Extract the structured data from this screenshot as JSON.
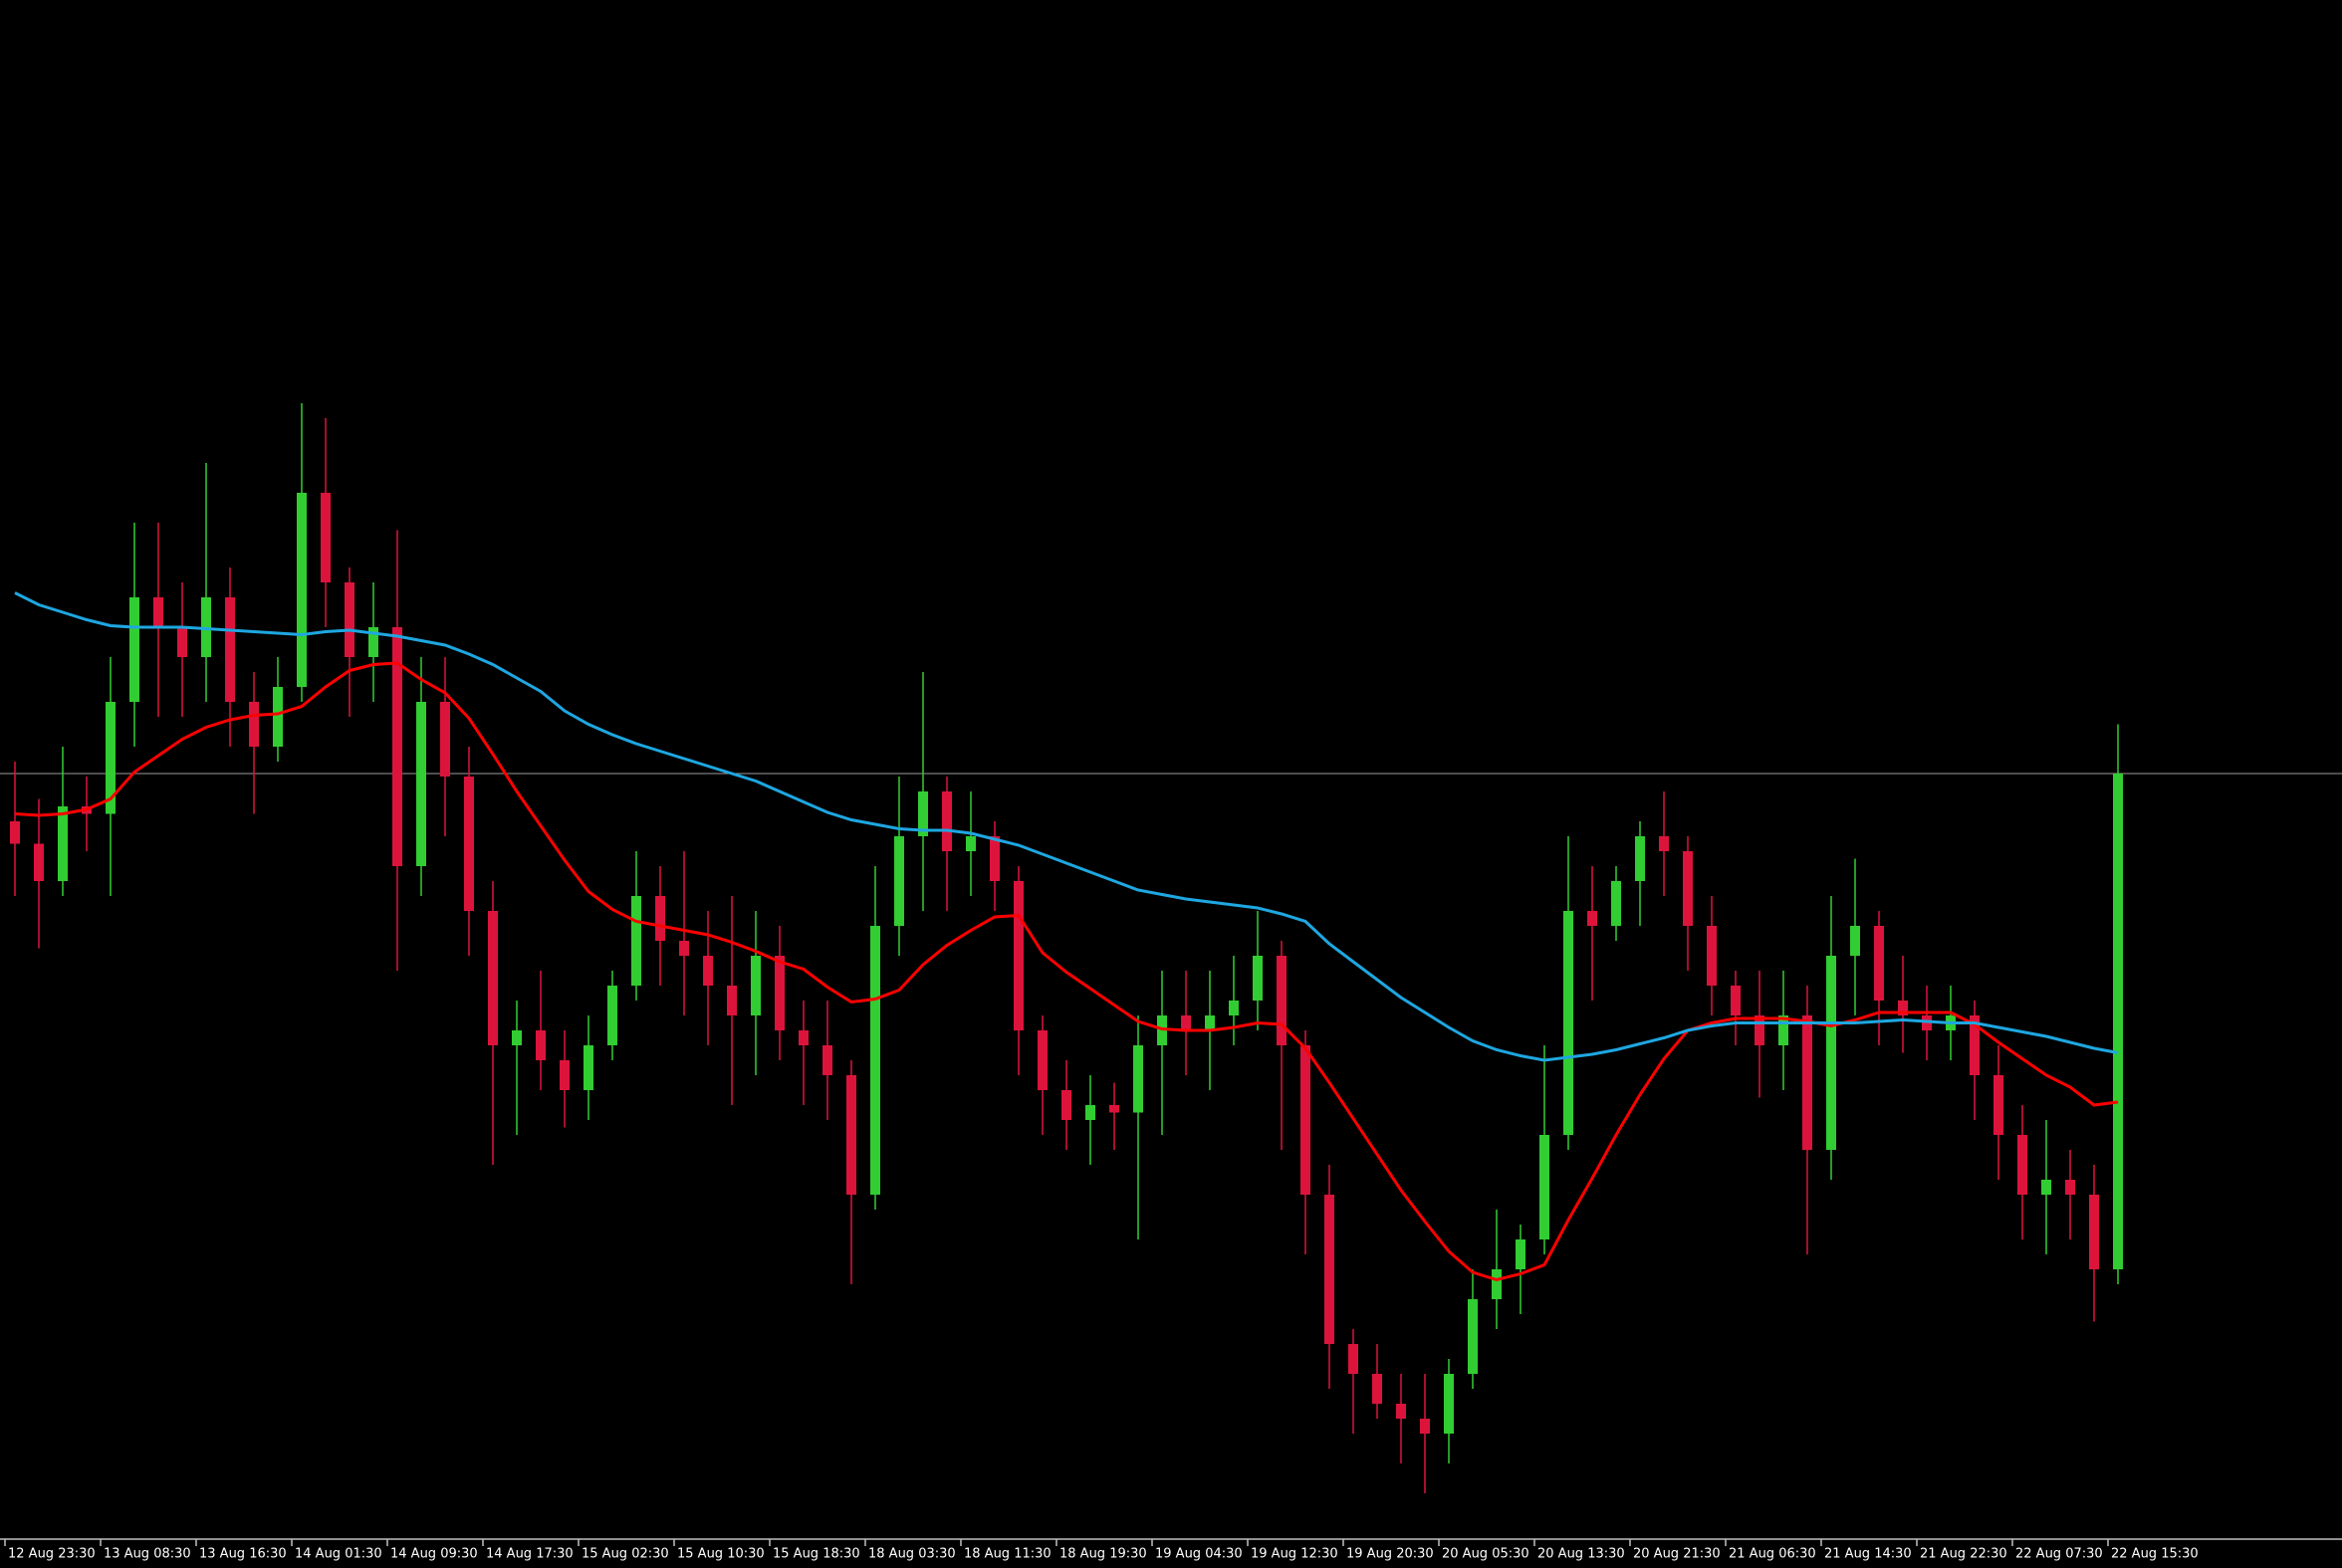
{
  "chart_data": {
    "type": "candlestick",
    "categories": [
      "12 Aug 23:30",
      null,
      null,
      null,
      "13 Aug 08:30",
      null,
      null,
      null,
      "13 Aug 16:30",
      null,
      null,
      null,
      "14 Aug 01:30",
      null,
      null,
      null,
      "14 Aug 09:30",
      null,
      null,
      null,
      "14 Aug 17:30",
      null,
      null,
      null,
      "15 Aug 02:30",
      null,
      null,
      null,
      "15 Aug 10:30",
      null,
      null,
      null,
      "15 Aug 18:30",
      null,
      null,
      null,
      "18 Aug 03:30",
      null,
      null,
      null,
      "18 Aug 11:30",
      null,
      null,
      null,
      "18 Aug 19:30",
      null,
      null,
      null,
      "19 Aug 04:30",
      null,
      null,
      null,
      "19 Aug 12:30",
      null,
      null,
      null,
      "19 Aug 20:30",
      null,
      null,
      null,
      "20 Aug 05:30",
      null,
      null,
      null,
      "20 Aug 13:30",
      null,
      null,
      null,
      "20 Aug 21:30",
      null,
      null,
      null,
      "21 Aug 06:30",
      null,
      null,
      null,
      "21 Aug 14:30",
      null,
      null,
      null,
      "21 Aug 22:30",
      null,
      null,
      null,
      "22 Aug 07:30",
      null,
      null,
      null,
      "22 Aug 15:30"
    ],
    "open": [
      480,
      465,
      440,
      490,
      485,
      560,
      630,
      610,
      590,
      630,
      560,
      530,
      570,
      700,
      640,
      590,
      610,
      450,
      560,
      510,
      420,
      330,
      340,
      320,
      300,
      330,
      370,
      430,
      400,
      390,
      370,
      350,
      390,
      340,
      330,
      310,
      230,
      410,
      470,
      500,
      460,
      470,
      440,
      340,
      300,
      280,
      290,
      285,
      330,
      350,
      340,
      350,
      360,
      390,
      330,
      230,
      130,
      110,
      90,
      80,
      70,
      110,
      160,
      180,
      200,
      270,
      420,
      410,
      440,
      470,
      460,
      410,
      370,
      350,
      330,
      350,
      260,
      390,
      410,
      360,
      350,
      340,
      350,
      310,
      270,
      230,
      240,
      230,
      180
    ],
    "high": [
      520,
      495,
      530,
      510,
      590,
      680,
      680,
      640,
      720,
      650,
      580,
      590,
      760,
      750,
      650,
      640,
      675,
      590,
      590,
      530,
      440,
      360,
      380,
      340,
      350,
      380,
      460,
      450,
      460,
      420,
      430,
      420,
      410,
      360,
      360,
      320,
      450,
      510,
      580,
      510,
      500,
      480,
      450,
      350,
      320,
      310,
      305,
      350,
      380,
      380,
      380,
      390,
      420,
      400,
      340,
      250,
      140,
      130,
      110,
      110,
      120,
      180,
      220,
      210,
      330,
      470,
      450,
      450,
      480,
      500,
      470,
      430,
      380,
      380,
      380,
      370,
      430,
      455,
      420,
      390,
      370,
      370,
      360,
      330,
      290,
      280,
      260,
      250,
      545
    ],
    "low": [
      430,
      395,
      430,
      460,
      430,
      530,
      550,
      550,
      560,
      530,
      485,
      520,
      560,
      610,
      550,
      560,
      380,
      430,
      470,
      390,
      250,
      270,
      300,
      275,
      280,
      320,
      360,
      370,
      350,
      330,
      290,
      310,
      320,
      290,
      280,
      170,
      220,
      390,
      420,
      420,
      430,
      420,
      310,
      270,
      260,
      250,
      260,
      200,
      270,
      310,
      300,
      330,
      340,
      260,
      190,
      100,
      70,
      80,
      50,
      30,
      50,
      100,
      140,
      150,
      190,
      260,
      360,
      400,
      410,
      430,
      380,
      350,
      330,
      295,
      300,
      190,
      240,
      350,
      330,
      325,
      320,
      320,
      280,
      240,
      200,
      190,
      200,
      145,
      170
    ],
    "close": [
      465,
      440,
      490,
      485,
      560,
      630,
      610,
      590,
      630,
      560,
      530,
      570,
      700,
      640,
      590,
      610,
      450,
      560,
      510,
      420,
      330,
      340,
      320,
      300,
      330,
      370,
      430,
      400,
      390,
      370,
      350,
      390,
      340,
      330,
      310,
      230,
      410,
      470,
      500,
      460,
      470,
      440,
      340,
      300,
      280,
      290,
      285,
      330,
      350,
      340,
      350,
      360,
      390,
      330,
      230,
      130,
      110,
      90,
      80,
      70,
      110,
      160,
      180,
      200,
      270,
      420,
      410,
      440,
      470,
      460,
      410,
      370,
      350,
      330,
      350,
      260,
      390,
      410,
      360,
      350,
      340,
      350,
      310,
      270,
      230,
      240,
      230,
      180,
      512
    ],
    "up_color": "#32cd32",
    "down_color": "#dc143c",
    "overlays": [
      {
        "color": "#ff0000",
        "values": [
          485,
          484,
          485,
          488,
          495,
          513,
          524,
          535,
          543,
          548,
          551,
          552,
          557,
          570,
          581,
          585,
          586,
          575,
          566,
          549,
          525,
          500,
          477,
          454,
          433,
          421,
          413,
          410,
          407,
          404,
          399,
          393,
          386,
          381,
          369,
          359,
          361,
          367,
          384,
          397,
          407,
          416,
          417,
          392,
          379,
          368,
          357,
          346,
          341,
          340,
          340,
          342,
          345,
          344,
          328,
          305,
          281,
          257,
          233,
          212,
          192,
          178,
          173,
          177,
          183,
          213,
          241,
          270,
          297,
          321,
          340,
          345,
          348,
          348,
          348,
          346,
          343,
          347,
          352,
          352,
          352,
          352,
          344,
          332,
          321,
          310,
          302,
          290,
          292
        ]
      },
      {
        "color": "#1ea7e1",
        "values": [
          633,
          625,
          620,
          615,
          611,
          610,
          610,
          610,
          609,
          608,
          607,
          606,
          605,
          607,
          608,
          606,
          604,
          601,
          598,
          592,
          585,
          576,
          567,
          554,
          545,
          538,
          532,
          527,
          522,
          517,
          512,
          507,
          500,
          493,
          486,
          481,
          478,
          475,
          474,
          474,
          472,
          468,
          464,
          458,
          452,
          446,
          440,
          434,
          431,
          428,
          426,
          424,
          422,
          418,
          413,
          398,
          386,
          374,
          362,
          352,
          342,
          333,
          327,
          323,
          320,
          322,
          324,
          327,
          331,
          335,
          340,
          343,
          345,
          345,
          345,
          345,
          345,
          345,
          346,
          347,
          346,
          345,
          345,
          342,
          339,
          336,
          332,
          328,
          325
        ]
      }
    ],
    "hline": 512,
    "hline_color": "#9a9a9a",
    "ylim": [
      0,
      1030
    ]
  }
}
